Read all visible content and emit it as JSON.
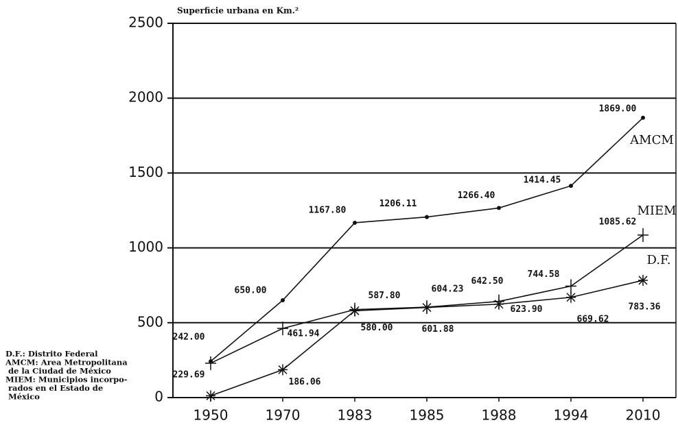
{
  "chart_data": {
    "type": "line",
    "y_axis_label": "Superficie urbana en Km.²",
    "categories": [
      "1950",
      "1970",
      "1983",
      "1985",
      "1988",
      "1994",
      "2010"
    ],
    "series": [
      {
        "name": "AMCM",
        "color": "#111111",
        "marker": "dot",
        "values": [
          242,
          650,
          1167.8,
          1206.11,
          1266.4,
          1414.45,
          1869
        ],
        "value_labels": [
          "242.00",
          "650.00",
          "1167.80",
          "1206.11",
          "1266.40",
          "1414.45",
          "1869.00"
        ]
      },
      {
        "name": "MIEM",
        "color": "#111111",
        "marker": "plus",
        "values": [
          229.69,
          461.94,
          587.8,
          604.23,
          642.5,
          744.58,
          1085.62
        ],
        "value_labels": [
          "229.69",
          "461.94",
          "587.80",
          "604.23",
          "642.50",
          "744.58",
          "1085.62"
        ]
      },
      {
        "name": "D.F.",
        "color": "#111111",
        "marker": "star",
        "values": [
          12,
          186.06,
          580,
          601.88,
          623.9,
          669.62,
          783.36
        ],
        "value_labels": [
          null,
          "186.06",
          "580.00",
          "601.88",
          "623.90",
          "669.62",
          "783.36"
        ]
      }
    ],
    "ylim": [
      0,
      2500
    ],
    "yticks": [
      0,
      500,
      1000,
      1500,
      2000,
      2500
    ],
    "grid": true,
    "notes": [
      "D.F.: Distrito Federal",
      "AMCM: Area Metropolitana",
      "de la Ciudad de México",
      "MIEM: Municipios incorpo-",
      "rados en el Estado de",
      "México"
    ]
  }
}
